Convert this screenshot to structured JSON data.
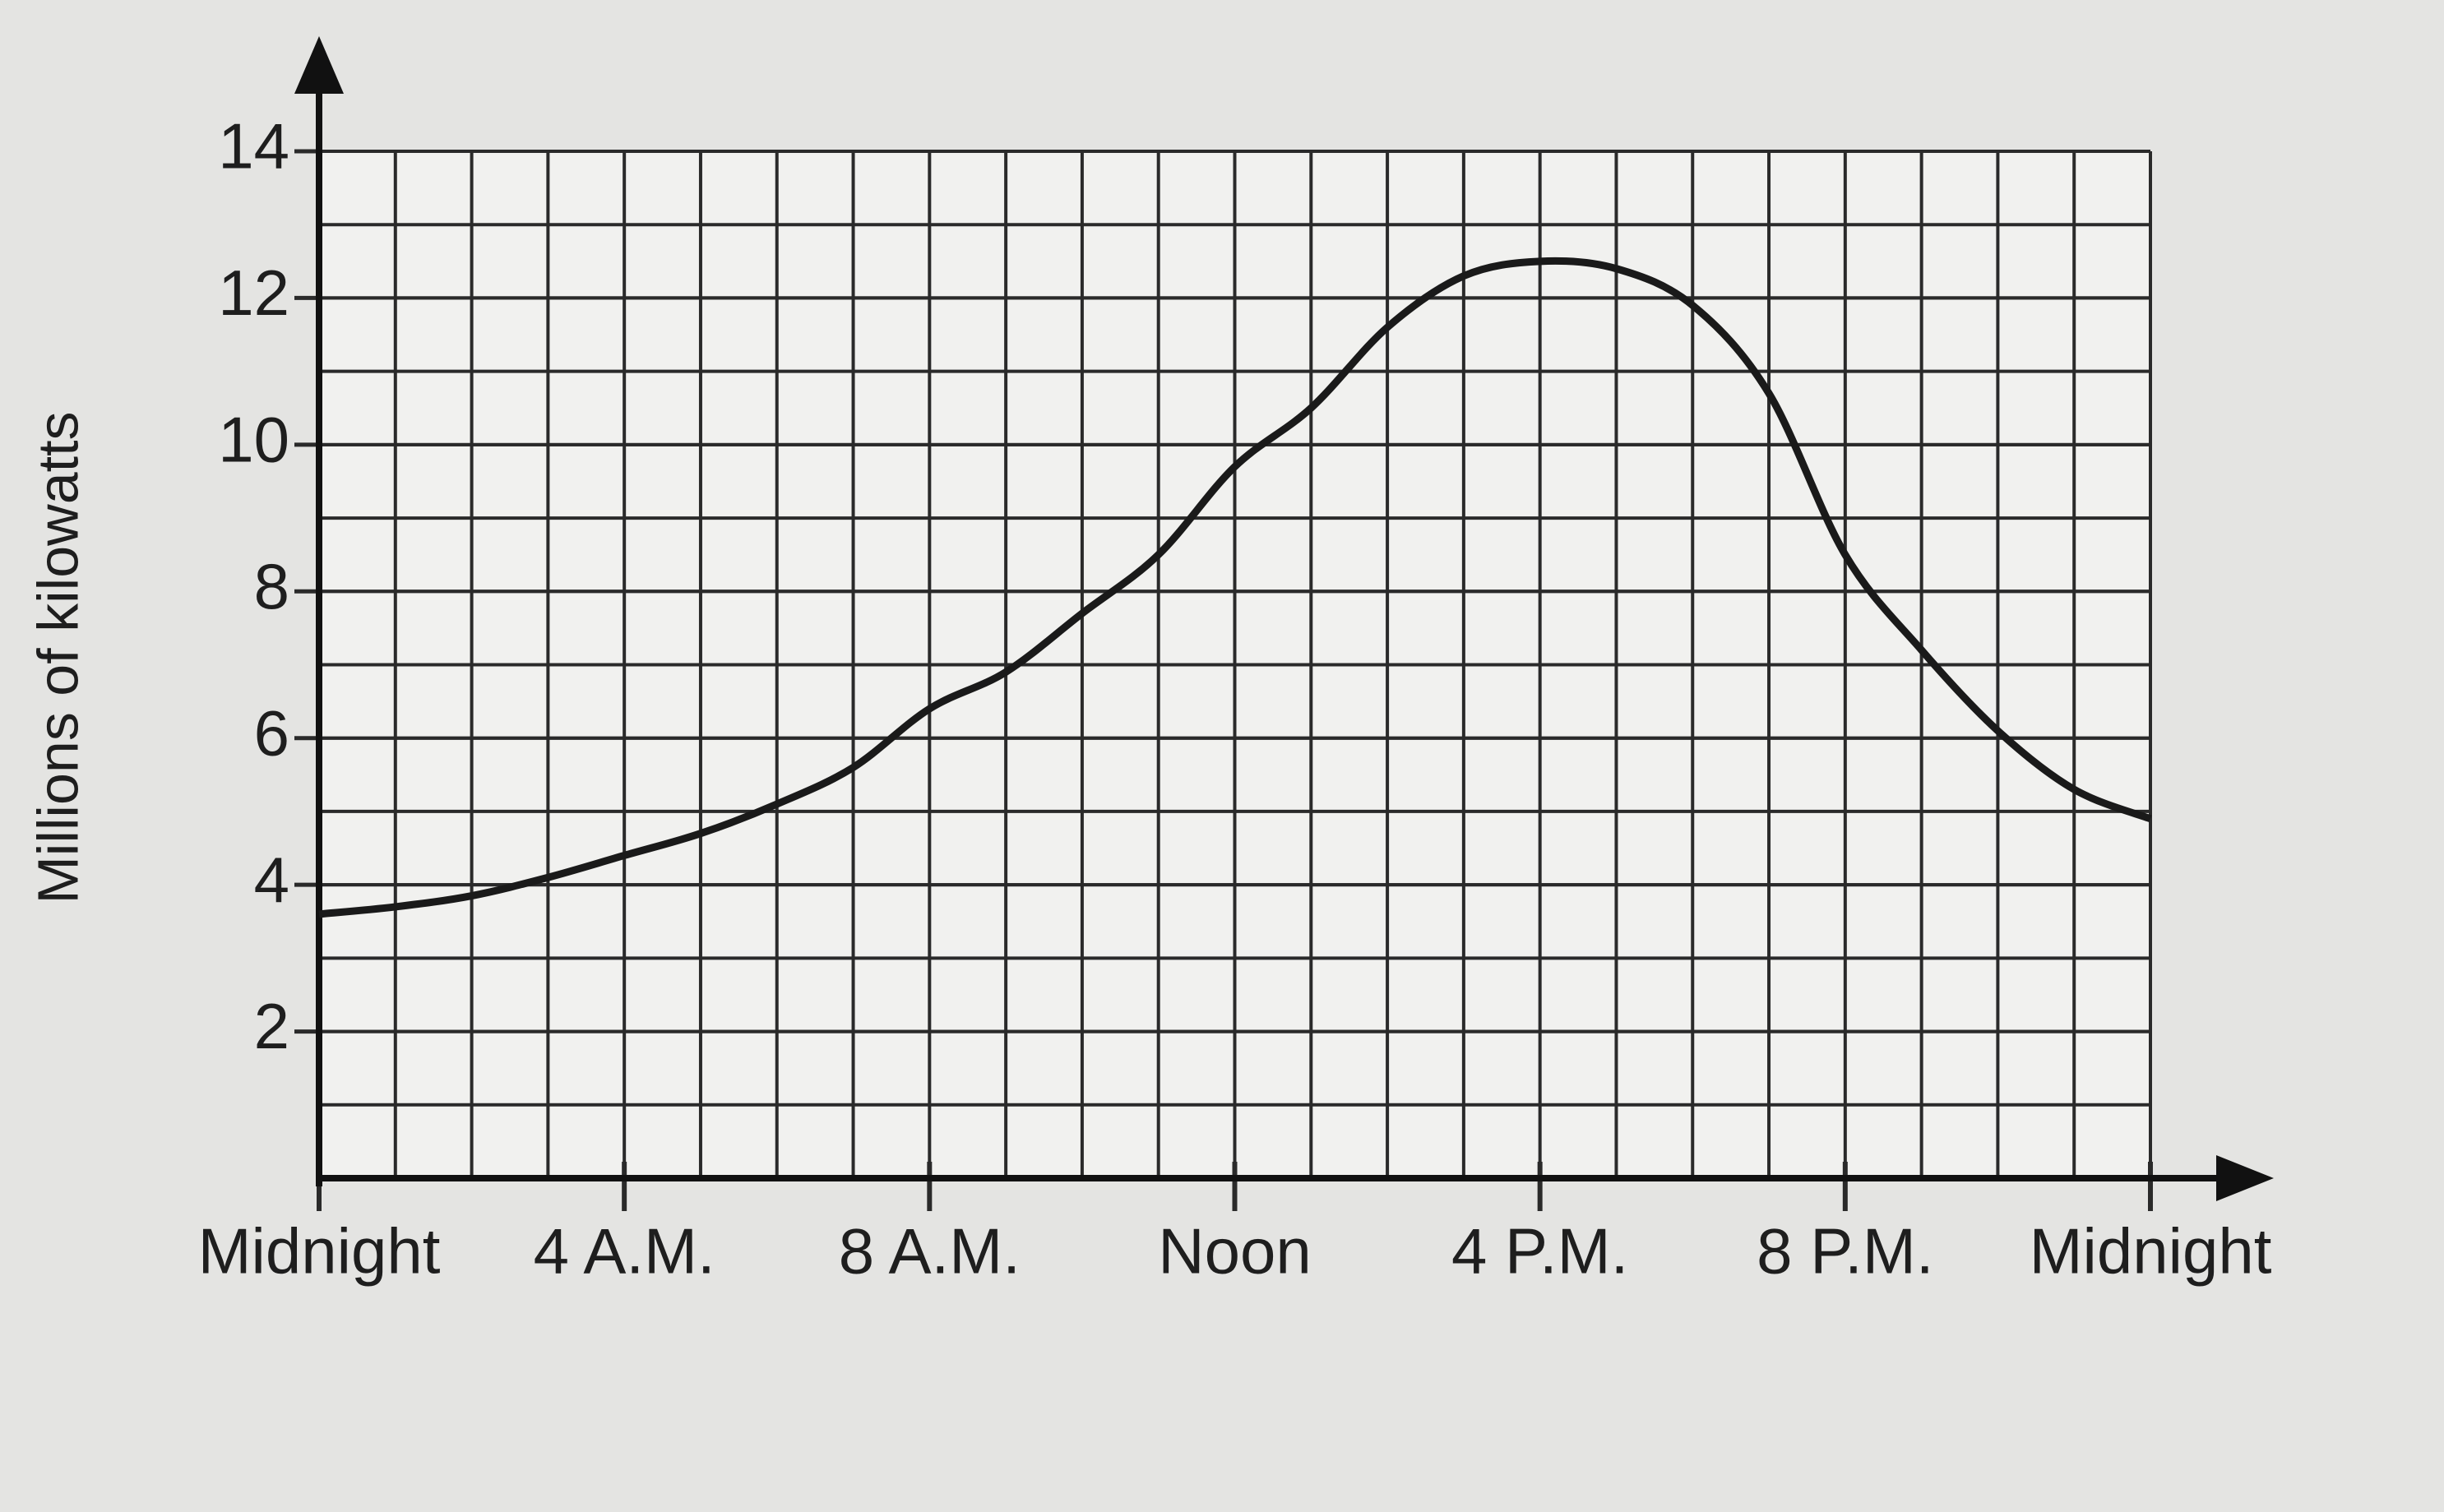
{
  "chart_data": {
    "type": "line",
    "y_label": "Millions of kilowatts",
    "x": [
      0,
      1,
      2,
      3,
      4,
      5,
      6,
      7,
      8,
      9,
      10,
      11,
      12,
      13,
      14,
      15,
      16,
      17,
      18,
      19,
      20,
      21,
      22,
      23,
      24
    ],
    "series": [
      {
        "color": "#1a1a1a",
        "values": [
          3.6,
          3.7,
          3.85,
          4.1,
          4.4,
          4.7,
          5.1,
          5.6,
          6.4,
          6.9,
          7.7,
          8.5,
          9.7,
          10.5,
          11.6,
          12.3,
          12.5,
          12.4,
          11.9,
          10.7,
          8.5,
          7.2,
          6.1,
          5.3,
          4.9
        ]
      }
    ],
    "xlim": [
      0,
      24
    ],
    "xticks": [
      {
        "value": 0,
        "label": "Midnight"
      },
      {
        "value": 4,
        "label": "4 A.M."
      },
      {
        "value": 8,
        "label": "8 A.M."
      },
      {
        "value": 12,
        "label": "Noon"
      },
      {
        "value": 16,
        "label": "4 P.M."
      },
      {
        "value": 20,
        "label": "8 P.M."
      },
      {
        "value": 24,
        "label": "Midnight"
      }
    ],
    "ylim": [
      0,
      14
    ],
    "yticks": [
      2,
      4,
      6,
      8,
      10,
      12,
      14
    ],
    "grid": true
  }
}
